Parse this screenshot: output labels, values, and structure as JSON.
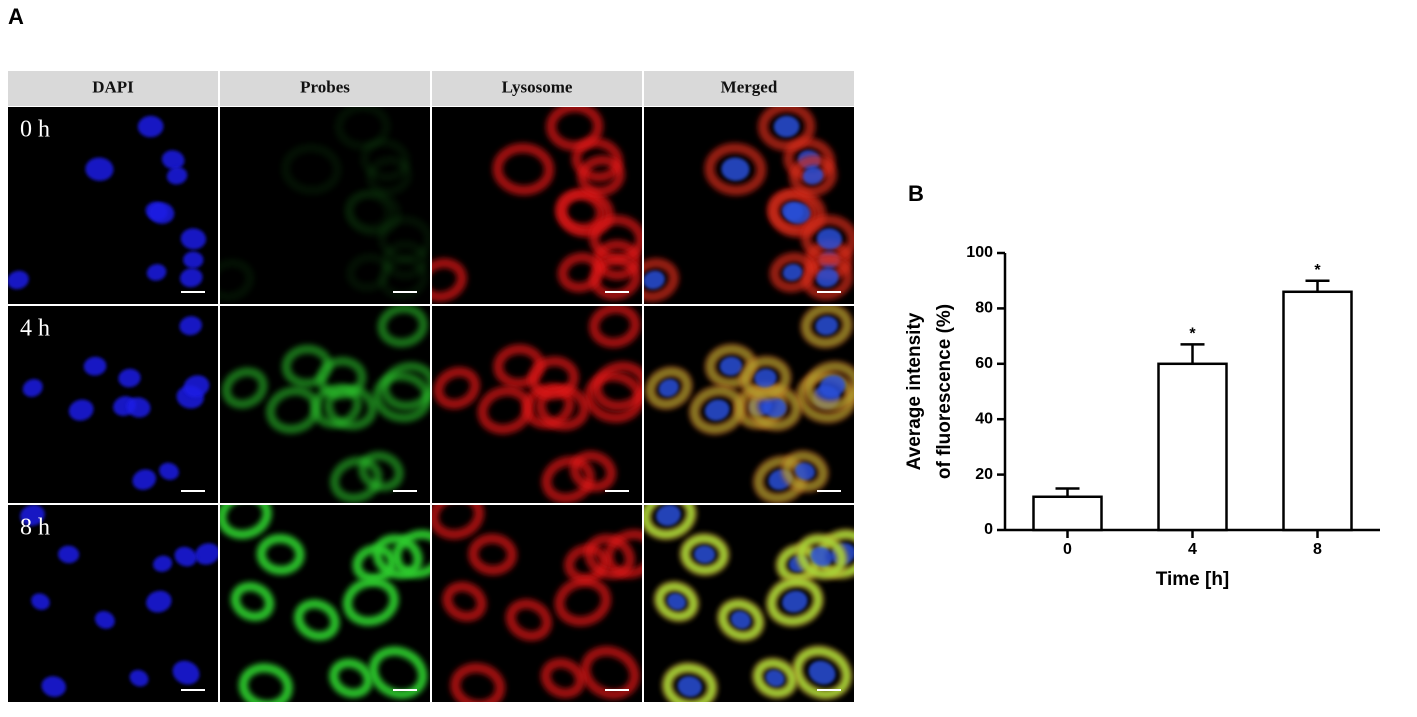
{
  "panel_a": {
    "label": "A",
    "columns": [
      "DAPI",
      "Probes",
      "Lysosome",
      "Merged"
    ],
    "rows": [
      "0 h",
      "4 h",
      "8 h"
    ]
  },
  "chart_data": {
    "type": "bar",
    "panel_label": "B",
    "categories": [
      "0",
      "4",
      "8"
    ],
    "values": [
      12,
      60,
      86
    ],
    "errors": [
      3,
      7,
      4
    ],
    "annotations": [
      null,
      "*",
      "*"
    ],
    "xlabel": "Time [h]",
    "ylabel": [
      "Average intensity",
      "of fluorescence (%)"
    ],
    "ylim": [
      0,
      100
    ],
    "yticks": [
      0,
      20,
      40,
      60,
      80,
      100
    ],
    "color": "#ffffff",
    "edgecolor": "#000000",
    "grid": false
  }
}
